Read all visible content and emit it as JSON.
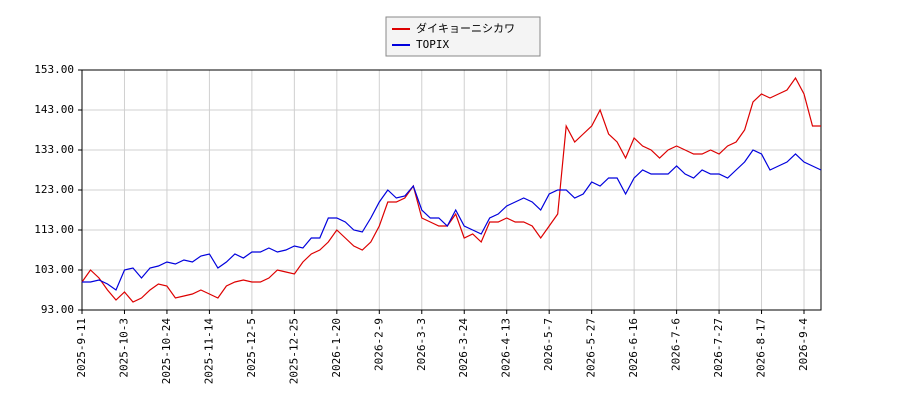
{
  "chart_data": {
    "type": "line",
    "categories": [
      "2025-9-11",
      null,
      null,
      null,
      null,
      "2025-10-3",
      null,
      null,
      null,
      null,
      "2025-10-24",
      null,
      null,
      null,
      null,
      "2025-11-14",
      null,
      null,
      null,
      null,
      "2025-12-5",
      null,
      null,
      null,
      null,
      "2025-12-25",
      null,
      null,
      null,
      null,
      "2026-1-20",
      null,
      null,
      null,
      null,
      "2026-2-9",
      null,
      null,
      null,
      null,
      "2026-3-3",
      null,
      null,
      null,
      null,
      "2026-3-24",
      null,
      null,
      null,
      null,
      "2026-4-13",
      null,
      null,
      null,
      null,
      "2026-5-7",
      null,
      null,
      null,
      null,
      "2026-5-27",
      null,
      null,
      null,
      null,
      "2026-6-16",
      null,
      null,
      null,
      null,
      "2026-7-6",
      null,
      null,
      null,
      null,
      "2026-7-27",
      null,
      null,
      null,
      null,
      "2026-8-17",
      null,
      null,
      null,
      null,
      "2026-9-4",
      null,
      null
    ],
    "series": [
      {
        "name": "ダイキョーニシカワ",
        "color": "#dd0000",
        "values": [
          100,
          103,
          101,
          98,
          95.5,
          97.5,
          95,
          96,
          98,
          99.5,
          99,
          96,
          96.5,
          97,
          98,
          97,
          96,
          99,
          100,
          100.5,
          100,
          100,
          101,
          103,
          102.5,
          102,
          105,
          107,
          108,
          110,
          113,
          111,
          109,
          108,
          110,
          114,
          120,
          120,
          121,
          124,
          116,
          115,
          114,
          114,
          117,
          111,
          112,
          110,
          115,
          115,
          116,
          115,
          115,
          114,
          111,
          114,
          117,
          139,
          135,
          137,
          139,
          143,
          137,
          135,
          131,
          136,
          134,
          133,
          131,
          133,
          134,
          133,
          132,
          132,
          133,
          132,
          134,
          135,
          138,
          145,
          147,
          146,
          147,
          148,
          151,
          147,
          139,
          139
        ]
      },
      {
        "name": "TOPIX",
        "color": "#0000dd",
        "values": [
          100,
          100,
          100.5,
          99.5,
          98,
          103,
          103.5,
          101,
          103.5,
          104,
          105,
          104.5,
          105.5,
          105,
          106.5,
          107,
          103.5,
          105,
          107,
          106,
          107.5,
          107.5,
          108.5,
          107.5,
          108,
          109,
          108.5,
          111,
          111,
          116,
          116,
          115,
          113,
          112.5,
          116,
          120,
          123,
          121,
          121.5,
          124,
          118,
          116,
          116,
          114,
          118,
          114,
          113,
          112,
          116,
          117,
          119,
          120,
          121,
          120,
          118,
          122,
          123,
          123,
          121,
          122,
          125,
          124,
          126,
          126,
          122,
          126,
          128,
          127,
          127,
          127,
          129,
          127,
          126,
          128,
          127,
          127,
          126,
          128,
          130,
          133,
          132,
          128,
          129,
          130,
          132,
          130,
          129,
          128
        ]
      }
    ],
    "ylim": [
      93,
      153
    ],
    "yticks": [
      {
        "value": 93,
        "label": "93.00"
      },
      {
        "value": 103,
        "label": "103.00"
      },
      {
        "value": 113,
        "label": "113.00"
      },
      {
        "value": 123,
        "label": "123.00"
      },
      {
        "value": 133,
        "label": "133.00"
      },
      {
        "value": 143,
        "label": "143.00"
      },
      {
        "value": 153,
        "label": "153.00"
      }
    ],
    "grid": true
  }
}
